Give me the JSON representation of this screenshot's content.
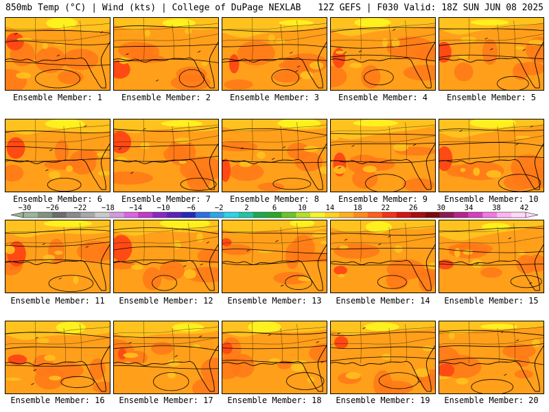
{
  "header": {
    "left": "850mb Temp (°C) | Wind (kts) | College of DuPage NEXLAB",
    "right": "12Z GEFS | F030 Valid: 18Z SUN JUN 08 2025"
  },
  "member_label": "Ensemble Member:",
  "members": [
    1,
    2,
    3,
    4,
    5,
    6,
    7,
    8,
    9,
    10,
    11,
    12,
    13,
    14,
    15,
    16,
    17,
    18,
    19,
    20
  ],
  "colorbar": {
    "labels": [
      "−30",
      "−26",
      "−22",
      "−18",
      "−14",
      "−10",
      "−6",
      "−2",
      "2",
      "6",
      "10",
      "14",
      "18",
      "22",
      "26",
      "30",
      "34",
      "38",
      "42"
    ],
    "colors": [
      "#9cb39c",
      "#7f9480",
      "#6d6d6d",
      "#8a8a8a",
      "#a8a8a8",
      "#c9c9c9",
      "#cf9cdb",
      "#d966e0",
      "#c23ac7",
      "#8b28c2",
      "#5a22b8",
      "#2828b8",
      "#2e6fe0",
      "#2ea6e6",
      "#2fd3e8",
      "#22c2a2",
      "#1fa84e",
      "#2fa52a",
      "#6dc32a",
      "#b6de2a",
      "#f5f52a",
      "#ffd21f",
      "#ffb020",
      "#ff8a1c",
      "#ff601a",
      "#f2341a",
      "#d61414",
      "#a80f0f",
      "#7c0a0a",
      "#8c1c52",
      "#b5268c",
      "#d540c0",
      "#f07ae0",
      "#ffb4f0",
      "#ffd8f8"
    ]
  },
  "style": {
    "base_color": "#ff9f1a",
    "warm_color": "#ff7818",
    "hot_color": "#ff4a14",
    "cool_color": "#ffc21f",
    "coolest_color": "#fff01f",
    "contour_color": "#000000"
  }
}
